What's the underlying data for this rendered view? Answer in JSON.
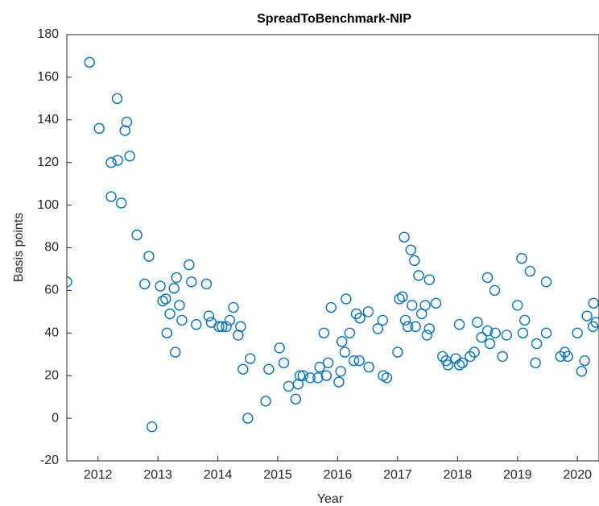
{
  "chart_data": {
    "type": "scatter",
    "title": "SpreadToBenchmark-NIP",
    "xlabel": "Year",
    "ylabel": "Basis points",
    "color": "#0072bd",
    "xlim": [
      2011.48,
      2020.36
    ],
    "ylim": [
      -20,
      180
    ],
    "xticks": [
      2012,
      2013,
      2014,
      2015,
      2016,
      2017,
      2018,
      2019,
      2020
    ],
    "yticks": [
      -20,
      0,
      20,
      40,
      60,
      80,
      100,
      120,
      140,
      160,
      180
    ],
    "x": [
      2011.48,
      2011.86,
      2012.02,
      2012.22,
      2012.33,
      2012.32,
      2012.22,
      2012.39,
      2012.45,
      2012.48,
      2012.53,
      2012.65,
      2012.78,
      2012.85,
      2012.9,
      2013.04,
      2013.08,
      2013.13,
      2013.15,
      2013.2,
      2013.27,
      2013.29,
      2013.31,
      2013.36,
      2013.4,
      2013.52,
      2013.56,
      2013.64,
      2013.81,
      2013.85,
      2013.89,
      2014.02,
      2014.07,
      2014.14,
      2014.2,
      2014.26,
      2014.34,
      2014.38,
      2014.42,
      2014.5,
      2014.54,
      2014.8,
      2014.85,
      2015.03,
      2015.1,
      2015.18,
      2015.3,
      2015.34,
      2015.37,
      2015.42,
      2015.54,
      2015.67,
      2015.7,
      2015.77,
      2015.81,
      2015.84,
      2015.89,
      2016.02,
      2016.05,
      2016.07,
      2016.12,
      2016.14,
      2016.2,
      2016.27,
      2016.31,
      2016.36,
      2016.37,
      2016.51,
      2016.52,
      2016.67,
      2016.75,
      2016.76,
      2016.82,
      2017.0,
      2017.03,
      2017.08,
      2017.11,
      2017.13,
      2017.17,
      2017.22,
      2017.24,
      2017.28,
      2017.3,
      2017.35,
      2017.4,
      2017.46,
      2017.49,
      2017.53,
      2017.53,
      2017.64,
      2017.75,
      2017.81,
      2017.84,
      2017.97,
      2018.03,
      2018.03,
      2018.08,
      2018.21,
      2018.28,
      2018.33,
      2018.4,
      2018.5,
      2018.5,
      2018.54,
      2018.62,
      2018.63,
      2018.75,
      2018.82,
      2019.0,
      2019.07,
      2019.09,
      2019.12,
      2019.21,
      2019.3,
      2019.32,
      2019.48,
      2019.48,
      2019.72,
      2019.79,
      2019.84,
      2020.0,
      2020.07,
      2020.12,
      2020.16,
      2020.26,
      2020.27,
      2020.31
    ],
    "values": [
      64,
      167,
      136,
      120,
      121,
      150,
      104,
      101,
      135,
      139,
      123,
      86,
      63,
      76,
      -4,
      62,
      55,
      56,
      40,
      49,
      61,
      31,
      66,
      53,
      46,
      72,
      64,
      44,
      63,
      48,
      45,
      43,
      43,
      43,
      46,
      52,
      39,
      43,
      23,
      0,
      28,
      8,
      23,
      33,
      26,
      15,
      9,
      16,
      20,
      20,
      19,
      19,
      24,
      40,
      20,
      26,
      52,
      17,
      22,
      36,
      31,
      56,
      40,
      27,
      49,
      27,
      47,
      50,
      24,
      42,
      46,
      20,
      19,
      31,
      56,
      57,
      85,
      46,
      43,
      79,
      53,
      74,
      43,
      67,
      49,
      53,
      39,
      65,
      42,
      54,
      29,
      27,
      25,
      28,
      44,
      25,
      26,
      29,
      31,
      45,
      38,
      41,
      66,
      35,
      60,
      40,
      29,
      39,
      53,
      75,
      40,
      46,
      69,
      26,
      35,
      64,
      40,
      29,
      31,
      29,
      40,
      22,
      27,
      48,
      43,
      54,
      45
    ]
  }
}
